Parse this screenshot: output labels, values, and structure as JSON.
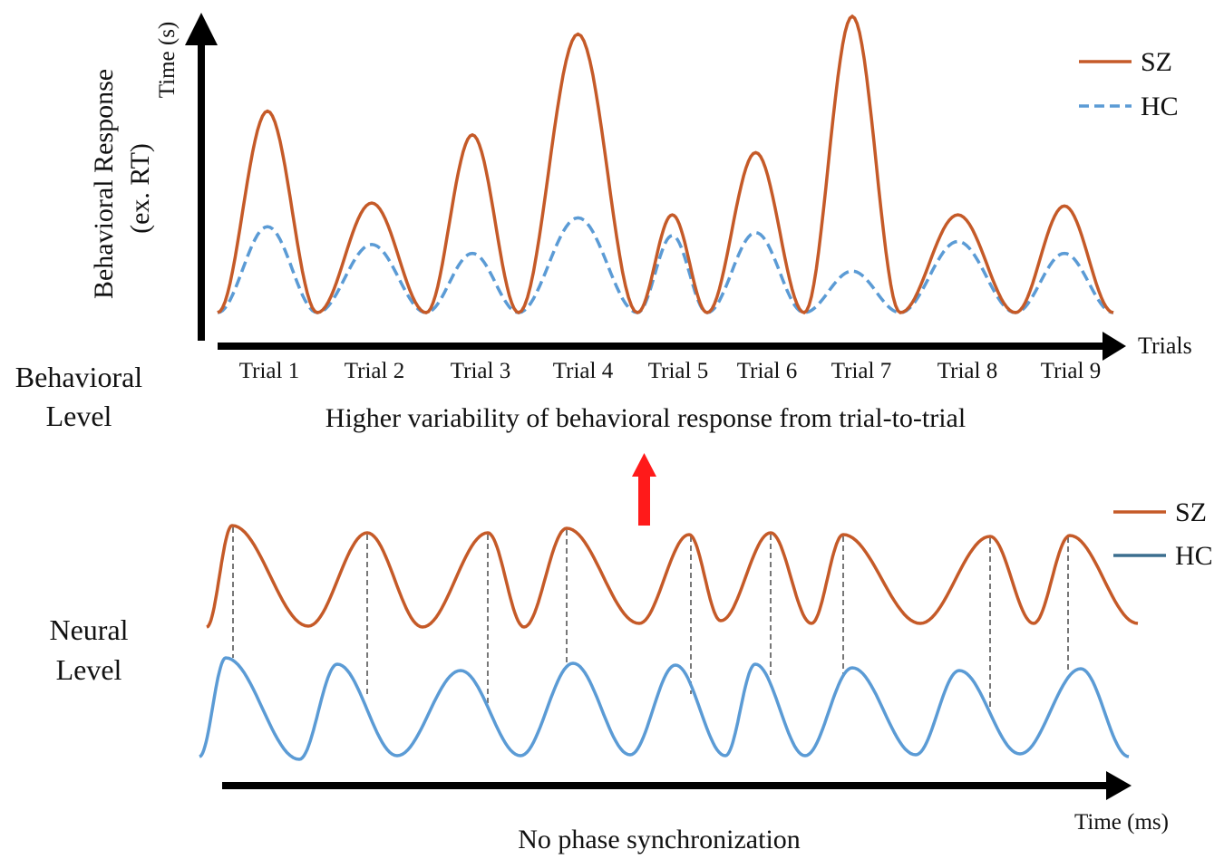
{
  "behavioral": {
    "level_label_line1": "Behavioral",
    "level_label_line2": "Level",
    "y_axis_unit": "Time (s)",
    "y_axis_label_line1": "Behavioral Response",
    "y_axis_label_line2": "(ex. RT)",
    "x_axis_label": "Trials",
    "caption": "Higher variability of behavioral response from trial-to-trial",
    "legend": [
      {
        "label": "SZ",
        "color": "#c55a28",
        "style": "solid"
      },
      {
        "label": "HC",
        "color": "#5b9bd5",
        "style": "dashed"
      }
    ],
    "trials": [
      "Trial 1",
      "Trial 2",
      "Trial 3",
      "Trial 4",
      "Trial 5",
      "Trial 6",
      "Trial 7",
      "Trial 8",
      "Trial 9"
    ],
    "sz_relative_peaks": [
      0.68,
      0.37,
      0.6,
      0.94,
      0.33,
      0.54,
      1.0,
      0.33,
      0.36
    ],
    "hc_relative_peaks": [
      0.29,
      0.23,
      0.2,
      0.32,
      0.26,
      0.27,
      0.14,
      0.24,
      0.2
    ]
  },
  "neural": {
    "level_label_line1": "Neural",
    "level_label_line2": "Level",
    "x_axis_unit": "Time (ms)",
    "caption": "No phase synchronization",
    "legend": [
      {
        "label": "SZ",
        "color": "#c55a28",
        "style": "solid"
      },
      {
        "label": "HC",
        "color": "#3b6e8f",
        "style": "solid"
      }
    ]
  },
  "colors": {
    "sz": "#c55a28",
    "hc_behavioral": "#5b9bd5",
    "hc_neural_wave": "#5b9bd5",
    "hc_neural_legend": "#3b6e8f",
    "link_arrow": "#ff1a1a",
    "axis": "#000000",
    "guide": "#777777"
  }
}
